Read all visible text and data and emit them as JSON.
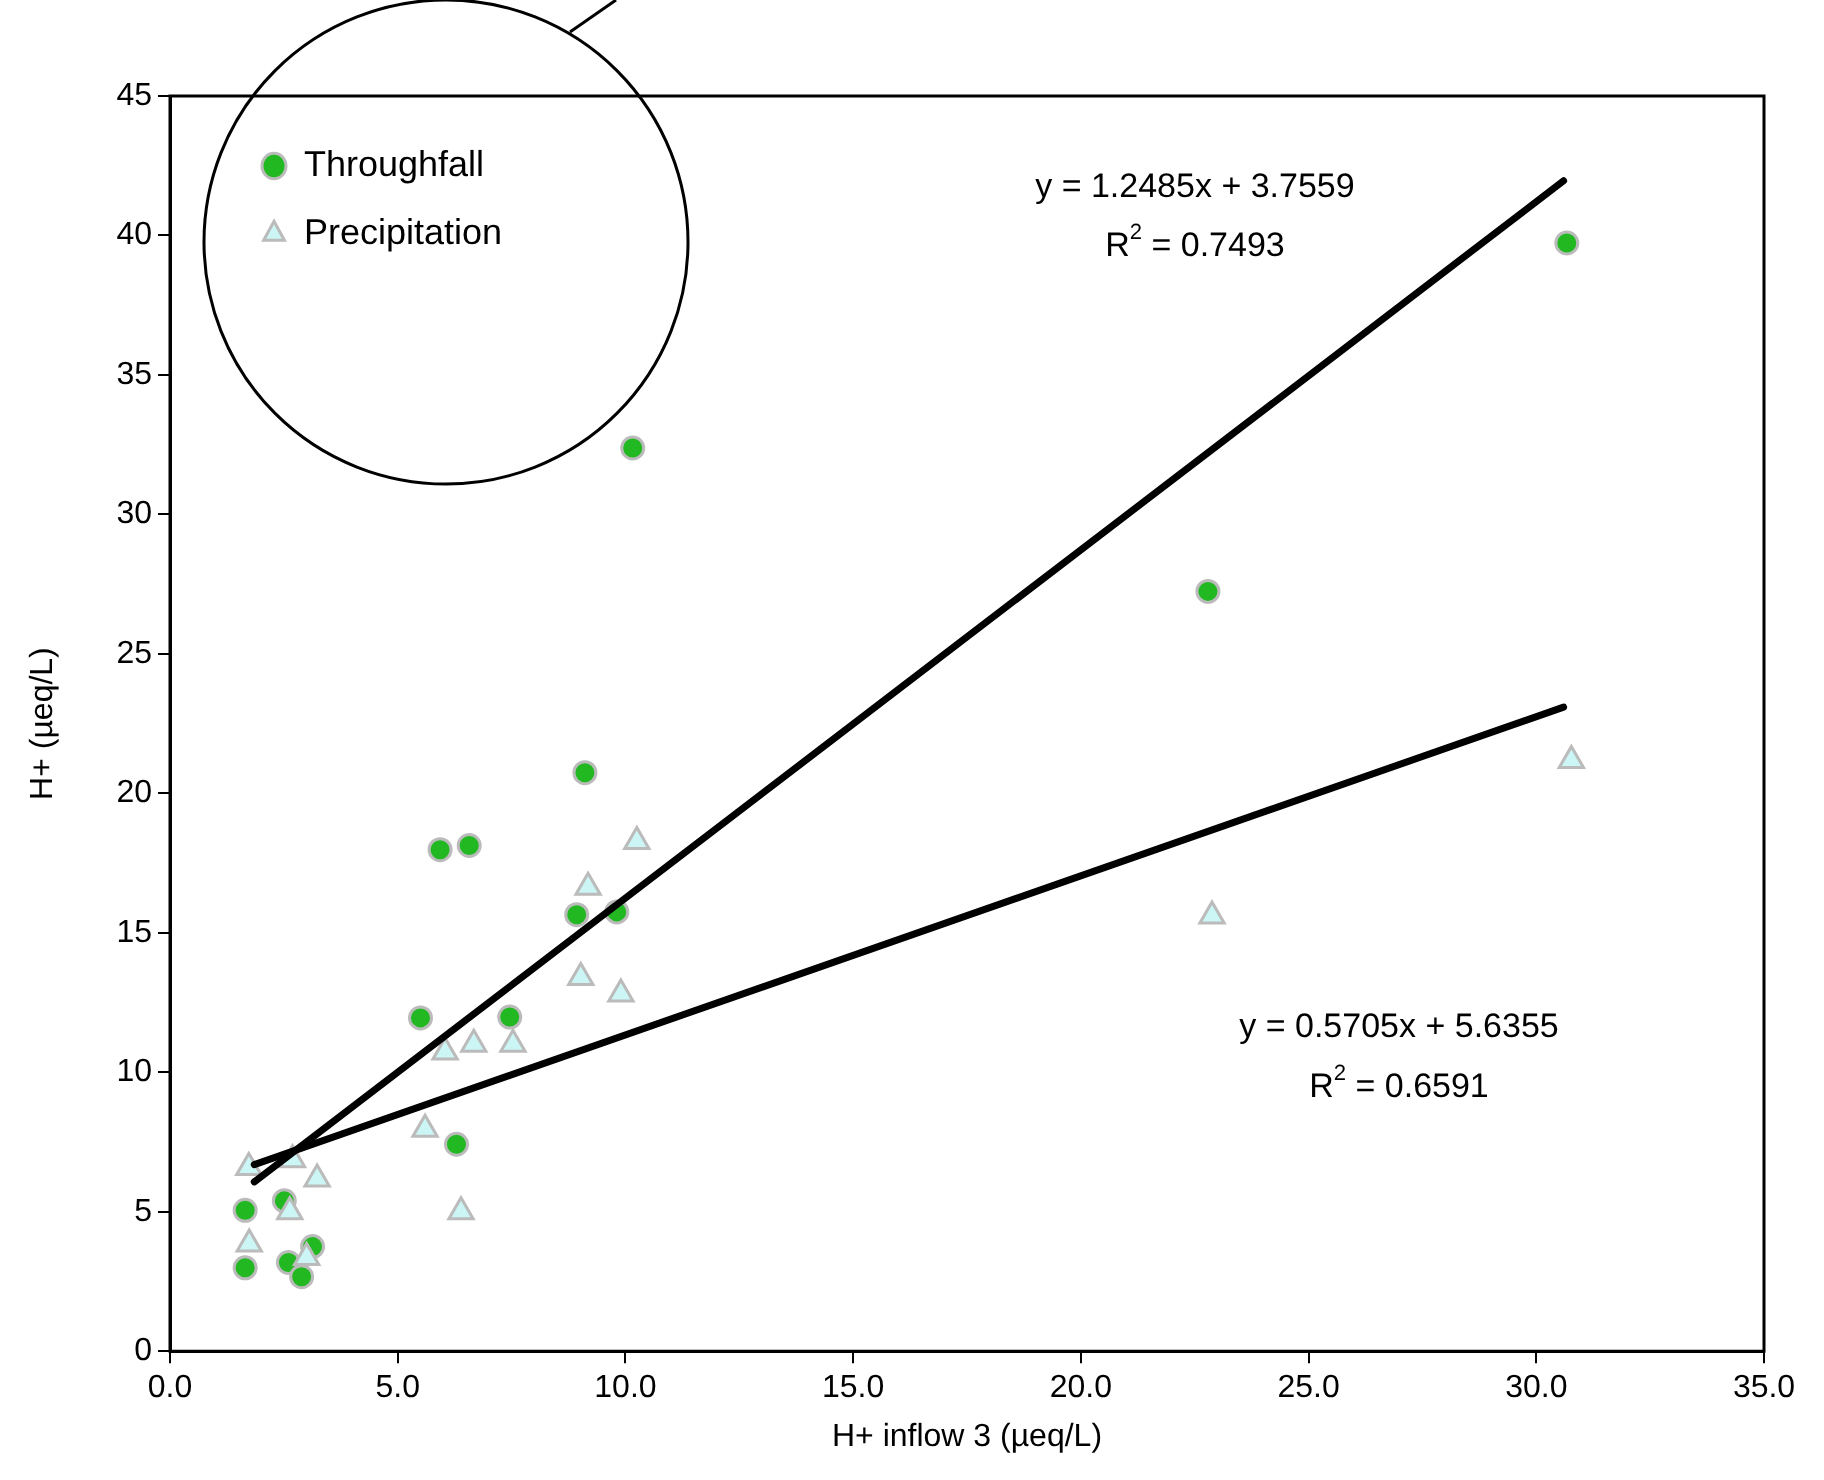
{
  "chart_data": {
    "type": "scatter",
    "xlabel": "H+ inflow 3 (µeq/L)",
    "ylabel": "H+ (µeq/L)",
    "xlim": [
      0,
      35
    ],
    "xticks": [
      {
        "value": 0,
        "label": "0.0"
      },
      {
        "value": 5,
        "label": "5.0"
      },
      {
        "value": 10,
        "label": "10.0"
      },
      {
        "value": 15,
        "label": "15.0"
      },
      {
        "value": 20,
        "label": "20.0"
      },
      {
        "value": 25,
        "label": "25.0"
      },
      {
        "value": 30,
        "label": "30.0"
      },
      {
        "value": 35,
        "label": "35.0"
      }
    ],
    "ylim": [
      0,
      45
    ],
    "yticks": [
      0,
      5,
      10,
      15,
      20,
      25,
      30,
      35,
      40,
      45
    ],
    "grid": false,
    "legend": "top left",
    "series": [
      {
        "name": "Throughfall",
        "color": "#22b822",
        "marker": "circle",
        "x": [
          1.65,
          1.65,
          2.51,
          2.6,
          2.89,
          3.13,
          5.5,
          5.93,
          6.57,
          6.29,
          7.46,
          8.93,
          9.81,
          9.11,
          10.16,
          30.67,
          22.79
        ],
        "values": [
          2.99,
          5.05,
          5.39,
          3.18,
          2.67,
          3.75,
          11.95,
          17.98,
          18.13,
          7.42,
          11.98,
          15.65,
          15.75,
          20.74,
          32.38,
          39.73,
          27.24
        ]
      },
      {
        "name": "Precipitation",
        "color": "#ccf5f5",
        "marker": "triangle",
        "x": [
          1.73,
          2.69,
          3.23,
          2.63,
          1.74,
          3.0,
          5.6,
          6.39,
          6.04,
          6.67,
          7.53,
          9.02,
          9.9,
          9.18,
          10.25,
          30.77,
          22.88
        ],
        "values": [
          6.59,
          6.86,
          6.17,
          5.0,
          3.84,
          3.36,
          7.96,
          5.0,
          10.73,
          11.0,
          11.0,
          13.4,
          12.81,
          16.63,
          18.27,
          21.18,
          15.6
        ]
      },
      {
        "type": "line",
        "color": "#000000",
        "marker": "none",
        "line_style": "solid",
        "x": [
          1.85,
          30.6
        ],
        "values": [
          6.07,
          41.96
        ]
      },
      {
        "type": "line",
        "color": "#000000",
        "marker": "none",
        "line_style": "solid",
        "x": [
          1.85,
          30.6
        ],
        "values": [
          6.69,
          23.09
        ]
      }
    ],
    "annotations": [
      "y = 1.2485x + 3.7559",
      "R$^{2}$ = 0.7493",
      "y = 0.5705x + 5.6355",
      "R$^{2}$ = 0.6591"
    ]
  }
}
